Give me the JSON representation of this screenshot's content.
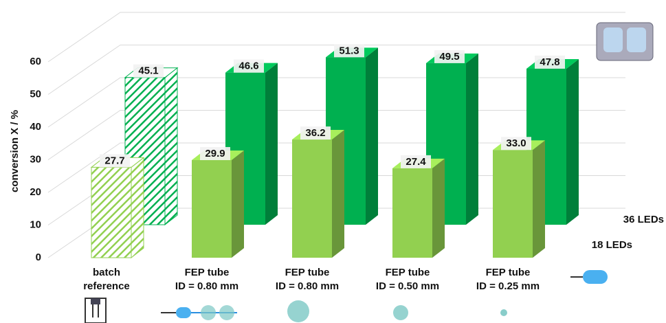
{
  "chart_data": {
    "type": "bar3d",
    "y_label": "conversion X / %",
    "categories": [
      [
        "batch",
        "reference"
      ],
      [
        "FEP tube",
        "ID = 0.80 mm"
      ],
      [
        "FEP tube",
        "ID = 0.80 mm"
      ],
      [
        "FEP tube",
        "ID = 0.50 mm"
      ],
      [
        "FEP tube",
        "ID = 0.25 mm"
      ]
    ],
    "hatched": [
      true,
      false,
      false,
      false,
      false
    ],
    "series": [
      {
        "name": "18 LEDs",
        "color": "#92d050",
        "values": [
          27.7,
          29.9,
          36.2,
          27.4,
          33
        ],
        "value_labels": [
          "27.7",
          "29.9",
          "36.2",
          "27.4",
          "33.0"
        ]
      },
      {
        "name": "36 LEDs",
        "color": "#00b050",
        "values": [
          45.1,
          46.6,
          51.3,
          49.5,
          47.8
        ],
        "value_labels": [
          "45.1",
          "46.6",
          "51.3",
          "49.5",
          "47.8"
        ]
      }
    ],
    "ylim": [
      0,
      60
    ],
    "yticks": [
      0,
      10,
      20,
      30,
      40,
      50,
      60
    ],
    "grid": true
  }
}
